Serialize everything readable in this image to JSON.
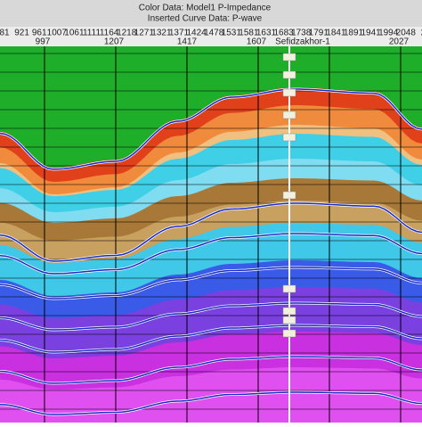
{
  "header": {
    "color_data": "Color Data: Model1 P-Impedance",
    "curve_data": "Inserted Curve Data: P-wave"
  },
  "trace_numbers": [
    "81",
    "921",
    "961",
    "1007",
    "1061",
    "1111",
    "1164",
    "1218",
    "1271",
    "1321",
    "1371",
    "1424",
    "1478",
    "1531",
    "1581",
    "1631",
    "1683",
    "1738",
    "1791",
    "1841",
    "1891",
    "1941",
    "1994",
    "2048",
    "2"
  ],
  "cdp_labels": [
    "997",
    "1207",
    "1417",
    "1607",
    "2027"
  ],
  "well_name": "Sefidzakhor-1"
}
